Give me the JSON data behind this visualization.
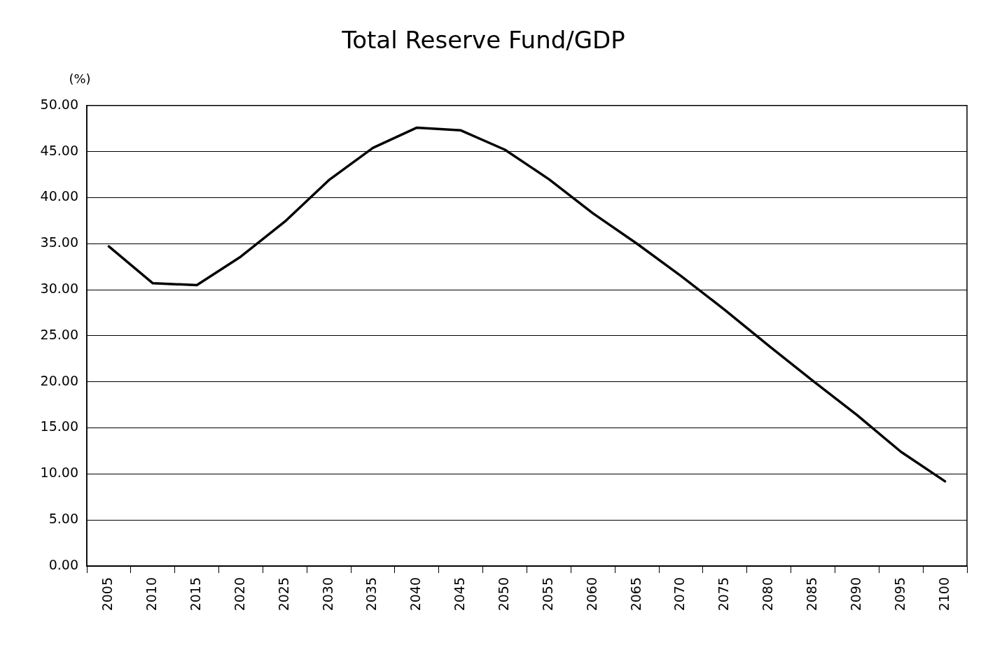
{
  "chart_data": {
    "type": "line",
    "title": "Total Reserve Fund/GDP",
    "ylabel": "(%)",
    "categories": [
      "2005",
      "2010",
      "2015",
      "2020",
      "2025",
      "2030",
      "2035",
      "2040",
      "2045",
      "2050",
      "2055",
      "2060",
      "2065",
      "2070",
      "2075",
      "2080",
      "2085",
      "2090",
      "2095",
      "2100"
    ],
    "series": [
      {
        "color": "#000000",
        "values": [
          34.7,
          30.7,
          30.5,
          33.6,
          37.4,
          41.9,
          45.4,
          47.6,
          47.3,
          45.2,
          42.0,
          38.3,
          35.0,
          31.5,
          27.8,
          23.9,
          20.1,
          16.4,
          12.4,
          9.2
        ]
      }
    ],
    "ylim": [
      0,
      50
    ],
    "yticks": [
      {
        "value": 0,
        "label": "0.00"
      },
      {
        "value": 5,
        "label": "5.00"
      },
      {
        "value": 10,
        "label": "10.00"
      },
      {
        "value": 15,
        "label": "15.00"
      },
      {
        "value": 20,
        "label": "20.00"
      },
      {
        "value": 25,
        "label": "25.00"
      },
      {
        "value": 30,
        "label": "30.00"
      },
      {
        "value": 35,
        "label": "35.00"
      },
      {
        "value": 40,
        "label": "40.00"
      },
      {
        "value": 45,
        "label": "45.00"
      },
      {
        "value": 50,
        "label": "50.00"
      }
    ],
    "grid": "y",
    "marker": "none",
    "line_style": "solid"
  }
}
